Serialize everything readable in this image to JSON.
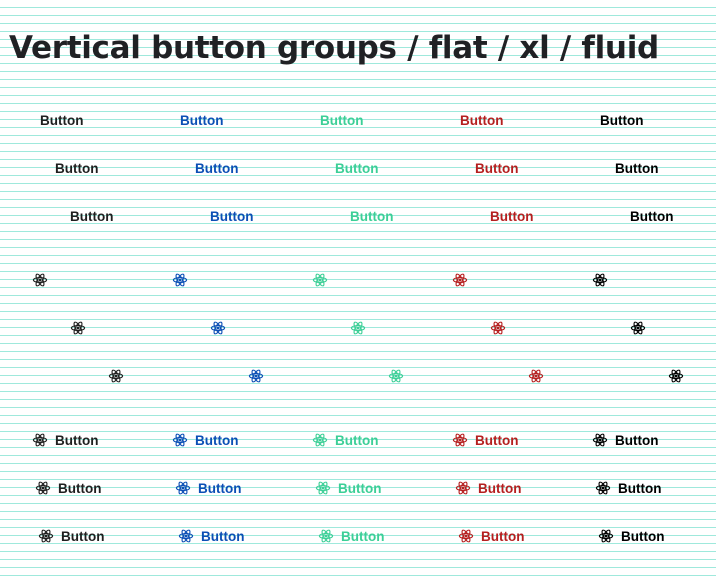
{
  "page": {
    "title": "Vertical button groups / flat / xl / fluid"
  },
  "button_label": "Button",
  "icon": "atom-icon",
  "variants": [
    {
      "name": "default",
      "color": "#1f1f1f"
    },
    {
      "name": "primary",
      "color": "#0b4fb5"
    },
    {
      "name": "success",
      "color": "#3ccf97"
    },
    {
      "name": "danger",
      "color": "#b51f1f"
    },
    {
      "name": "dark",
      "color": "#000000"
    }
  ],
  "groups": [
    {
      "type": "text"
    },
    {
      "type": "icon"
    },
    {
      "type": "icon-text"
    }
  ]
}
